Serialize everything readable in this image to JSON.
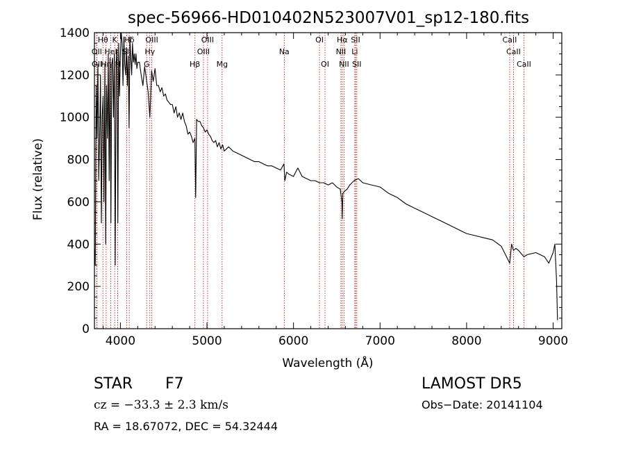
{
  "colors": {
    "background": "#ffffff",
    "ink": "#000000",
    "line_marker": "#c01818"
  },
  "chart_data": {
    "type": "line",
    "title": "spec-56966-HD010402N523007V01_sp12-180.fits",
    "xlabel": "Wavelength (Å)",
    "ylabel": "Flux (relative)",
    "xlim": [
      3700,
      9100
    ],
    "ylim": [
      0,
      1400
    ],
    "x_ticks": [
      "4000",
      "5000",
      "6000",
      "7000",
      "8000",
      "9000"
    ],
    "y_ticks": [
      "0",
      "200",
      "400",
      "600",
      "800",
      "1000",
      "1200",
      "1400"
    ],
    "grid": false,
    "series": [
      {
        "x": [
          3700,
          3710,
          3720,
          3730,
          3740,
          3750,
          3760,
          3770,
          3780,
          3790,
          3800,
          3810,
          3820,
          3830,
          3840,
          3850,
          3860,
          3870,
          3880,
          3890,
          3900,
          3910,
          3920,
          3930,
          3940,
          3950,
          3960,
          3970,
          3980,
          3990,
          4000,
          4010,
          4020,
          4030,
          4040,
          4050,
          4060,
          4070,
          4080,
          4090,
          4100,
          4110,
          4120,
          4130,
          4140,
          4150,
          4160,
          4170,
          4180,
          4190,
          4200,
          4220,
          4240,
          4260,
          4280,
          4300,
          4320,
          4340,
          4360,
          4380,
          4400,
          4420,
          4440,
          4460,
          4480,
          4500,
          4520,
          4540,
          4560,
          4580,
          4600,
          4620,
          4640,
          4660,
          4680,
          4700,
          4720,
          4740,
          4760,
          4780,
          4800,
          4820,
          4840,
          4860,
          4870,
          4880,
          4900,
          4920,
          4940,
          4960,
          4980,
          5000,
          5020,
          5040,
          5060,
          5080,
          5100,
          5120,
          5140,
          5160,
          5180,
          5200,
          5250,
          5300,
          5350,
          5400,
          5450,
          5500,
          5550,
          5600,
          5650,
          5700,
          5750,
          5800,
          5850,
          5890,
          5900,
          5920,
          5950,
          6000,
          6050,
          6100,
          6150,
          6200,
          6250,
          6300,
          6350,
          6400,
          6450,
          6500,
          6540,
          6560,
          6563,
          6570,
          6590,
          6620,
          6650,
          6700,
          6750,
          6800,
          6900,
          7000,
          7100,
          7200,
          7300,
          7400,
          7500,
          7600,
          7700,
          7800,
          7900,
          8000,
          8100,
          8200,
          8300,
          8400,
          8498,
          8520,
          8542,
          8570,
          8600,
          8662,
          8700,
          8800,
          8900,
          8950,
          9000,
          9020,
          9040,
          9050
        ],
        "y": [
          380,
          300,
          1150,
          900,
          1250,
          700,
          900,
          1200,
          500,
          1000,
          1100,
          600,
          1250,
          400,
          1150,
          900,
          1300,
          700,
          1280,
          500,
          1250,
          1280,
          1000,
          1300,
          300,
          1250,
          1320,
          500,
          1350,
          1100,
          1300,
          1400,
          1350,
          1150,
          1380,
          1250,
          1200,
          1330,
          1150,
          1290,
          950,
          1380,
          1280,
          1200,
          1350,
          1260,
          1300,
          1250,
          1300,
          1230,
          1260,
          1260,
          1200,
          1150,
          1240,
          1180,
          1120,
          1000,
          1220,
          1170,
          1230,
          1150,
          1150,
          1120,
          1140,
          1100,
          1110,
          1080,
          1070,
          1060,
          1060,
          1020,
          1050,
          1000,
          1020,
          990,
          1020,
          980,
          960,
          920,
          930,
          910,
          880,
          900,
          620,
          990,
          980,
          980,
          960,
          950,
          930,
          940,
          920,
          910,
          890,
          880,
          890,
          860,
          880,
          850,
          870,
          840,
          860,
          840,
          830,
          820,
          810,
          800,
          790,
          790,
          780,
          770,
          770,
          760,
          750,
          780,
          700,
          740,
          730,
          720,
          760,
          720,
          710,
          700,
          700,
          690,
          690,
          680,
          690,
          670,
          660,
          600,
          520,
          640,
          650,
          660,
          680,
          700,
          710,
          690,
          680,
          670,
          640,
          620,
          590,
          570,
          550,
          530,
          510,
          490,
          470,
          450,
          440,
          430,
          420,
          390,
          310,
          400,
          370,
          380,
          370,
          340,
          350,
          360,
          340,
          310,
          360,
          400,
          220,
          40
        ]
      }
    ],
    "spectral_lines": [
      {
        "label": "Hθ",
        "wavelength": 3798,
        "row": 1
      },
      {
        "label": "K",
        "wavelength": 3934,
        "row": 1
      },
      {
        "label": "Hδ",
        "wavelength": 4102,
        "row": 1
      },
      {
        "label": "OIII",
        "wavelength": 4363,
        "row": 1
      },
      {
        "label": "OIII",
        "wavelength": 5007,
        "row": 1
      },
      {
        "label": "OI",
        "wavelength": 6300,
        "row": 1
      },
      {
        "label": "Hα",
        "wavelength": 6563,
        "row": 1
      },
      {
        "label": "SII",
        "wavelength": 6717,
        "row": 1
      },
      {
        "label": "CaII",
        "wavelength": 8498,
        "row": 1
      },
      {
        "label": "OII",
        "wavelength": 3727,
        "row": 2
      },
      {
        "label": "HeI",
        "wavelength": 3889,
        "row": 2
      },
      {
        "label": "SII",
        "wavelength": 4072,
        "row": 2
      },
      {
        "label": "Hγ",
        "wavelength": 4340,
        "row": 2
      },
      {
        "label": "OIII",
        "wavelength": 4959,
        "row": 2
      },
      {
        "label": "Na",
        "wavelength": 5893,
        "row": 2
      },
      {
        "label": "NII",
        "wavelength": 6548,
        "row": 2
      },
      {
        "label": "Li",
        "wavelength": 6708,
        "row": 2
      },
      {
        "label": "CaII",
        "wavelength": 8542,
        "row": 2
      },
      {
        "label": "OII",
        "wavelength": 3729,
        "row": 3
      },
      {
        "label": "Hη",
        "wavelength": 3835,
        "row": 3
      },
      {
        "label": "H",
        "wavelength": 3969,
        "row": 3
      },
      {
        "label": "G",
        "wavelength": 4304,
        "row": 3
      },
      {
        "label": "Hβ",
        "wavelength": 4861,
        "row": 3
      },
      {
        "label": "Mg",
        "wavelength": 5175,
        "row": 3
      },
      {
        "label": "OI",
        "wavelength": 6364,
        "row": 3
      },
      {
        "label": "NII",
        "wavelength": 6584,
        "row": 3
      },
      {
        "label": "SII",
        "wavelength": 6731,
        "row": 3
      },
      {
        "label": "CaII",
        "wavelength": 8662,
        "row": 3
      }
    ]
  },
  "info": {
    "class_label": "STAR",
    "subclass": "F7",
    "survey": "LAMOST DR5",
    "redshift": "cz = −33.3 ± 2.3 km/s",
    "obs_date": "Obs−Date: 20141104",
    "coords": "RA =  18.67072, DEC =  54.32444"
  }
}
